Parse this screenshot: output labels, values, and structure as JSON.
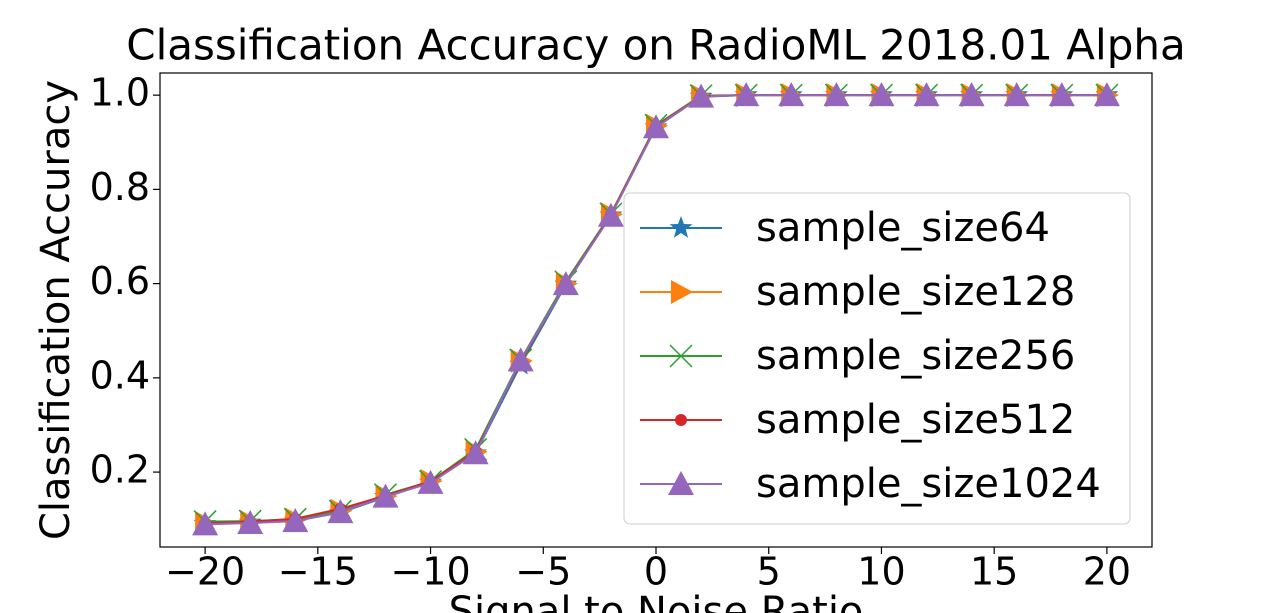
{
  "chart_data": {
    "type": "line",
    "title": "Classification Accuracy on RadioML 2018.01 Alpha",
    "x_label": "Signal to Noise Ratio",
    "y_label": "Classification Accuracy",
    "x": [
      -20,
      -18,
      -16,
      -14,
      -12,
      -10,
      -8,
      -6,
      -4,
      -2,
      0,
      2,
      4,
      6,
      8,
      10,
      12,
      14,
      16,
      18,
      20
    ],
    "series": [
      {
        "name": "sample_size64",
        "color": "#1f77b4",
        "marker": "star",
        "values": [
          0.09,
          0.093,
          0.097,
          0.114,
          0.147,
          0.178,
          0.24,
          0.428,
          0.598,
          0.745,
          0.932,
          0.997,
          1.0,
          1.0,
          1.0,
          1.0,
          1.0,
          1.0,
          1.0,
          1.0,
          1.0
        ]
      },
      {
        "name": "sample_size128",
        "color": "#ff7f0e",
        "marker": "triangle-right",
        "values": [
          0.092,
          0.094,
          0.099,
          0.118,
          0.149,
          0.181,
          0.243,
          0.436,
          0.6,
          0.747,
          0.935,
          0.998,
          1.0,
          1.0,
          1.0,
          1.0,
          1.0,
          1.0,
          1.0,
          1.0,
          1.0
        ]
      },
      {
        "name": "sample_size256",
        "color": "#2ca02c",
        "marker": "x",
        "values": [
          0.095,
          0.096,
          0.1,
          0.117,
          0.152,
          0.18,
          0.248,
          0.438,
          0.604,
          0.748,
          0.936,
          0.999,
          1.0,
          1.0,
          1.0,
          1.0,
          1.0,
          1.0,
          1.0,
          1.0,
          1.0
        ]
      },
      {
        "name": "sample_size512",
        "color": "#d62728",
        "marker": "circle",
        "values": [
          0.091,
          0.095,
          0.101,
          0.122,
          0.15,
          0.18,
          0.244,
          0.434,
          0.6,
          0.746,
          0.934,
          0.998,
          1.0,
          1.0,
          1.0,
          1.0,
          1.0,
          1.0,
          1.0,
          1.0,
          1.0
        ]
      },
      {
        "name": "sample_size1024",
        "color": "#9467bd",
        "marker": "triangle-up",
        "values": [
          0.089,
          0.092,
          0.096,
          0.115,
          0.148,
          0.177,
          0.24,
          0.437,
          0.599,
          0.744,
          0.932,
          0.997,
          1.0,
          1.0,
          1.0,
          1.0,
          1.0,
          1.0,
          1.0,
          1.0,
          1.0
        ]
      }
    ],
    "xlim": [
      -22,
      22
    ],
    "ylim": [
      0.041,
      1.047
    ],
    "xticks": [
      {
        "value": -20,
        "label": "−20"
      },
      {
        "value": -15,
        "label": "−15"
      },
      {
        "value": -10,
        "label": "−10"
      },
      {
        "value": -5,
        "label": "−5"
      },
      0,
      5,
      10,
      15,
      20
    ],
    "yticks": [
      0.2,
      0.4,
      0.6,
      0.8,
      {
        "value": 1,
        "label": "1.0"
      }
    ],
    "legend": "center-right"
  }
}
